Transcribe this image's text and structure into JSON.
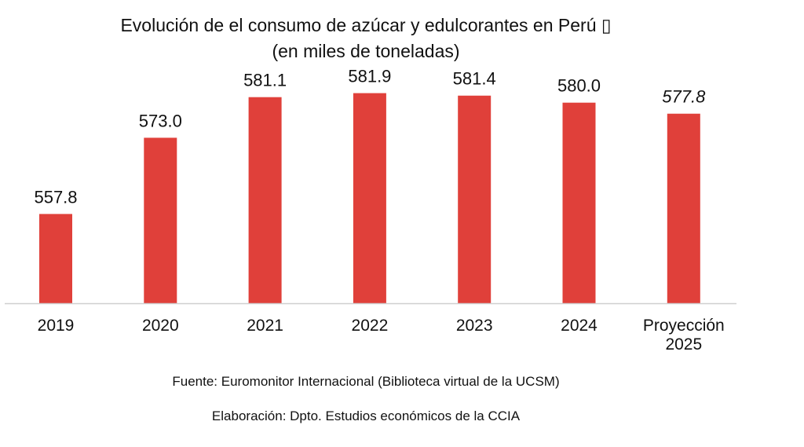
{
  "chart_data": {
    "type": "bar",
    "title": [
      "Evolución de el consumo de azúcar y edulcorantes en Perú ▯",
      "(en miles de toneladas)"
    ],
    "categories": [
      "2019",
      "2020",
      "2021",
      "2022",
      "2023",
      "2024",
      "Proyección 2025"
    ],
    "values": [
      557.8,
      573.0,
      581.1,
      581.9,
      581.4,
      580.0,
      577.8
    ],
    "value_labels": [
      "557.8",
      "573.0",
      "581.1",
      "581.9",
      "581.4",
      "580.0",
      "577.8"
    ],
    "projected": [
      false,
      false,
      false,
      false,
      false,
      false,
      true
    ],
    "ylim": [
      540,
      587
    ],
    "bar_color": "#e0403a",
    "axis_color": "#d0d0d0",
    "xlabel": "",
    "ylabel": "",
    "grid": false,
    "legend": "none"
  },
  "notes": {
    "source": "Fuente: Euromonitor Internacional (Biblioteca virtual de la UCSM)",
    "credit": "Elaboración: Dpto. Estudios económicos de la CCIA"
  }
}
